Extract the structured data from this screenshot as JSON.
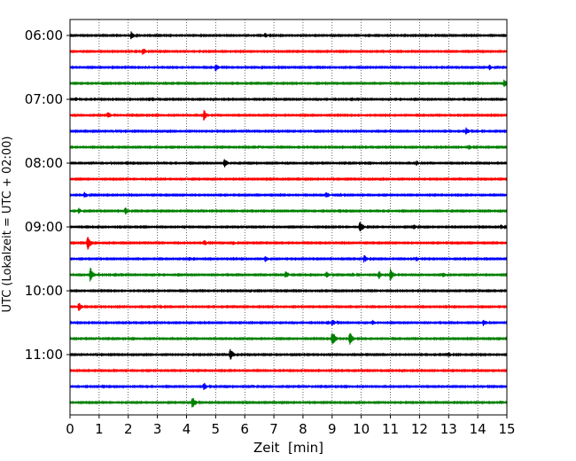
{
  "chart_data": {
    "type": "line",
    "subtype": "helicorder",
    "title": "",
    "xlabel": "Zeit  [min]",
    "ylabel": "UTC (Lokalzeit = UTC + 02:00)",
    "xlim": [
      0,
      15
    ],
    "x_ticks": [
      0,
      1,
      2,
      3,
      4,
      5,
      6,
      7,
      8,
      9,
      10,
      11,
      12,
      13,
      14,
      15
    ],
    "x_tick_labels": [
      "0",
      "1",
      "2",
      "3",
      "4",
      "5",
      "6",
      "7",
      "8",
      "9",
      "10",
      "11",
      "12",
      "13",
      "14",
      "15"
    ],
    "y_ticks": [
      {
        "label": "06:00",
        "trace_index": 0
      },
      {
        "label": "07:00",
        "trace_index": 4
      },
      {
        "label": "08:00",
        "trace_index": 8
      },
      {
        "label": "09:00",
        "trace_index": 12
      },
      {
        "label": "10:00",
        "trace_index": 16
      },
      {
        "label": "11:00",
        "trace_index": 20
      }
    ],
    "trace_minutes": 15,
    "grid": "vertical dotted lines at each minute",
    "colors": [
      "#000000",
      "#ff0000",
      "#0000ff",
      "#008000"
    ],
    "noise_level": 0.06,
    "traces": [
      {
        "start": "06:00",
        "events": [
          {
            "t": 2.1,
            "a": 0.55
          },
          {
            "t": 6.7,
            "a": 0.4
          }
        ]
      },
      {
        "start": "06:15",
        "events": [
          {
            "t": 2.5,
            "a": 0.55
          },
          {
            "t": 4.5,
            "a": 0.15
          }
        ]
      },
      {
        "start": "06:30",
        "events": [
          {
            "t": 1.4,
            "a": 0.15
          },
          {
            "t": 2.6,
            "a": 0.2
          },
          {
            "t": 5.0,
            "a": 0.55
          },
          {
            "t": 6.5,
            "a": 0.2
          },
          {
            "t": 13.4,
            "a": 0.15
          },
          {
            "t": 14.4,
            "a": 0.4
          }
        ]
      },
      {
        "start": "06:45",
        "events": [
          {
            "t": 14.9,
            "a": 0.55
          }
        ]
      },
      {
        "start": "07:00",
        "events": [
          {
            "t": 0.2,
            "a": 0.3
          },
          {
            "t": 2.7,
            "a": 0.3
          }
        ]
      },
      {
        "start": "07:15",
        "events": [
          {
            "t": 1.3,
            "a": 0.5
          },
          {
            "t": 4.6,
            "a": 0.75
          }
        ]
      },
      {
        "start": "07:30",
        "events": [
          {
            "t": 1.5,
            "a": 0.15
          },
          {
            "t": 13.6,
            "a": 0.5
          },
          {
            "t": 14.0,
            "a": 0.25
          }
        ]
      },
      {
        "start": "07:45",
        "events": [
          {
            "t": 6.5,
            "a": 0.15
          },
          {
            "t": 13.7,
            "a": 0.35
          }
        ]
      },
      {
        "start": "08:00",
        "events": [
          {
            "t": 1.3,
            "a": 0.2
          },
          {
            "t": 5.3,
            "a": 0.65
          },
          {
            "t": 11.9,
            "a": 0.35
          }
        ]
      },
      {
        "start": "08:15",
        "events": [
          {
            "t": 4.0,
            "a": 0.12
          }
        ]
      },
      {
        "start": "08:30",
        "events": [
          {
            "t": 0.5,
            "a": 0.45
          },
          {
            "t": 8.8,
            "a": 0.45
          },
          {
            "t": 9.3,
            "a": 0.25
          }
        ]
      },
      {
        "start": "08:45",
        "events": [
          {
            "t": 0.3,
            "a": 0.4
          },
          {
            "t": 1.9,
            "a": 0.55
          }
        ]
      },
      {
        "start": "09:00",
        "events": [
          {
            "t": 9.95,
            "a": 0.9
          },
          {
            "t": 11.8,
            "a": 0.4
          },
          {
            "t": 14.8,
            "a": 0.3
          }
        ]
      },
      {
        "start": "09:15",
        "events": [
          {
            "t": 0.6,
            "a": 1.05
          },
          {
            "t": 4.6,
            "a": 0.45
          },
          {
            "t": 5.6,
            "a": 0.3
          }
        ]
      },
      {
        "start": "09:30",
        "events": [
          {
            "t": 4.1,
            "a": 0.35
          },
          {
            "t": 6.7,
            "a": 0.45
          },
          {
            "t": 10.1,
            "a": 0.55
          },
          {
            "t": 11.9,
            "a": 0.35
          }
        ]
      },
      {
        "start": "09:45",
        "events": [
          {
            "t": 0.7,
            "a": 0.95
          },
          {
            "t": 7.4,
            "a": 0.6
          },
          {
            "t": 8.8,
            "a": 0.5
          },
          {
            "t": 9.7,
            "a": 0.3
          },
          {
            "t": 10.6,
            "a": 0.65
          },
          {
            "t": 11.0,
            "a": 0.85
          },
          {
            "t": 12.8,
            "a": 0.4
          }
        ]
      },
      {
        "start": "10:00",
        "events": [
          {
            "t": 6.2,
            "a": 0.25
          }
        ]
      },
      {
        "start": "10:15",
        "events": [
          {
            "t": 0.3,
            "a": 0.6
          },
          {
            "t": 3.1,
            "a": 0.3
          }
        ]
      },
      {
        "start": "10:30",
        "events": [
          {
            "t": 9.0,
            "a": 0.45
          },
          {
            "t": 10.4,
            "a": 0.35
          },
          {
            "t": 14.2,
            "a": 0.5
          }
        ]
      },
      {
        "start": "10:45",
        "events": [
          {
            "t": 0.9,
            "a": 0.2
          },
          {
            "t": 9.0,
            "a": 1.1
          },
          {
            "t": 9.6,
            "a": 1.0
          }
        ]
      },
      {
        "start": "11:00",
        "events": [
          {
            "t": 5.5,
            "a": 0.8
          },
          {
            "t": 13.0,
            "a": 0.35
          }
        ]
      },
      {
        "start": "11:15",
        "events": [
          {
            "t": 1.4,
            "a": 0.2
          }
        ]
      },
      {
        "start": "11:30",
        "events": [
          {
            "t": 4.6,
            "a": 0.55
          },
          {
            "t": 6.3,
            "a": 0.25
          },
          {
            "t": 8.2,
            "a": 0.2
          },
          {
            "t": 14.2,
            "a": 0.25
          }
        ]
      },
      {
        "start": "11:45",
        "events": [
          {
            "t": 4.2,
            "a": 0.85
          },
          {
            "t": 14.8,
            "a": 0.35
          }
        ]
      }
    ]
  }
}
